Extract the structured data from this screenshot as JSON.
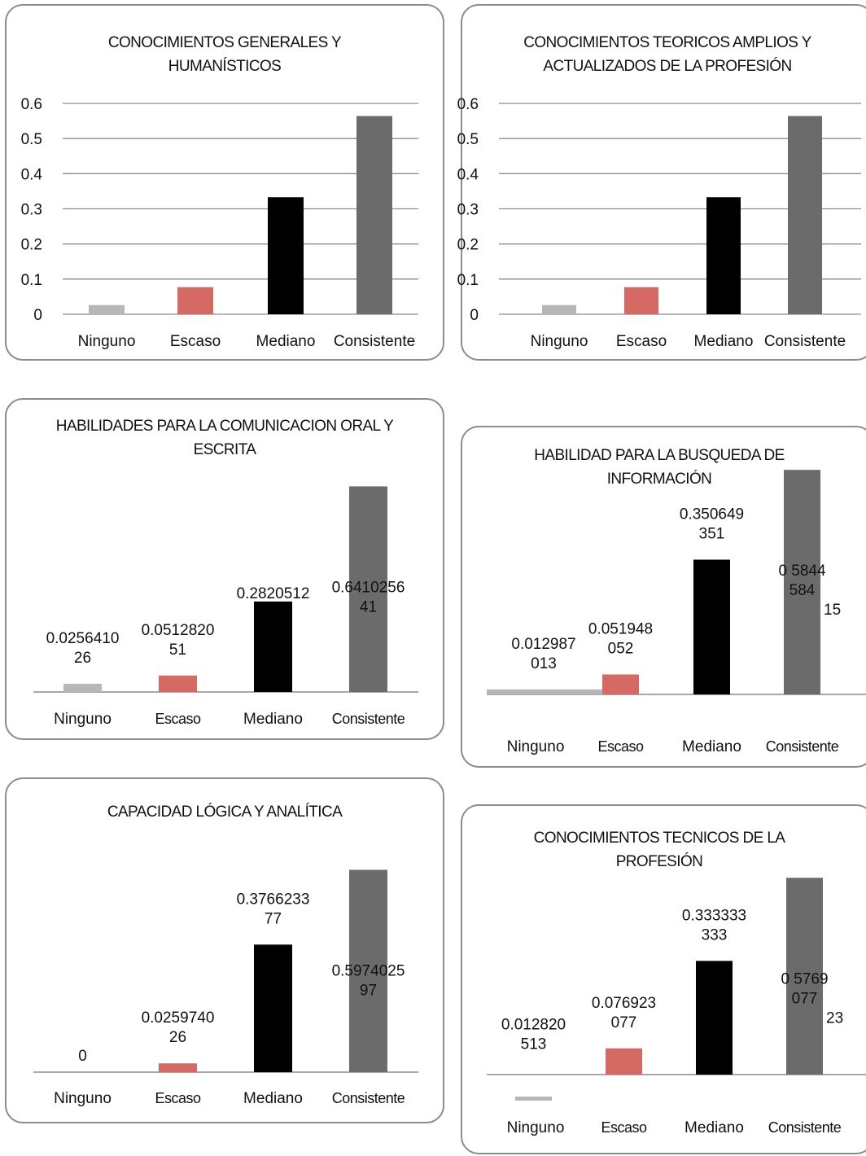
{
  "colors": {
    "ninguno": "#b7b7b7",
    "escaso": "#d46a63",
    "mediano": "#000000",
    "consistente": "#6b6b6b",
    "grid": "#8c8c8c",
    "border": "#8c8c8c"
  },
  "chart_data": [
    {
      "type": "bar",
      "title_lines": [
        "CONOCIMIENTOS GENERALES Y",
        "HUMANÍSTICOS"
      ],
      "categories": [
        "Ninguno",
        "Escaso",
        "Mediano",
        "Consistente"
      ],
      "values": [
        0.026,
        0.077,
        0.333,
        0.564
      ],
      "ylim": [
        0,
        0.6
      ],
      "yticks": [
        "0",
        "0.1",
        "0.2",
        "0.3",
        "0.4",
        "0.5",
        "0.6"
      ],
      "grid": true
    },
    {
      "type": "bar",
      "title_lines": [
        "CONOCIMIENTOS TEORICOS AMPLIOS Y",
        "ACTUALIZADOS DE LA  PROFESIÓN"
      ],
      "categories": [
        "Ninguno",
        "Escaso",
        "Mediano",
        "Consistente"
      ],
      "values": [
        0.026,
        0.077,
        0.333,
        0.564
      ],
      "ylim": [
        0,
        0.6
      ],
      "yticks": [
        "0",
        "0.1",
        "0.2",
        "0.3",
        "0.4",
        "0.5",
        "0.6"
      ],
      "grid": true
    },
    {
      "type": "bar",
      "title_lines": [
        "HABILIDADES PARA LA COMUNICACION ORAL Y",
        "ESCRITA"
      ],
      "categories": [
        "Ninguno",
        "Escaso",
        "Mediano",
        "Consistente"
      ],
      "values": [
        0.025641026,
        0.051282051,
        0.282051282,
        0.641025641
      ],
      "data_labels": [
        [
          "0.0256410",
          "26"
        ],
        [
          "0.0512820",
          "51"
        ],
        [
          "0.2820512"
        ],
        [
          "0.6410256",
          "41"
        ]
      ],
      "grid": false
    },
    {
      "type": "bar",
      "title_lines": [
        "HABILIDAD PARA LA BUSQUEDA DE",
        "INFORMACIÓN"
      ],
      "categories": [
        "Ninguno",
        "Escaso",
        "Mediano",
        "Consistente"
      ],
      "values": [
        0.012987013,
        0.051948052,
        0.350649351,
        0.584415584
      ],
      "data_labels": [
        [
          "0.012987",
          "013"
        ],
        [
          "0.051948",
          "052"
        ],
        [
          "0.350649",
          "351"
        ],
        [
          "0 5844",
          "584",
          "15"
        ]
      ],
      "grid": false
    },
    {
      "type": "bar",
      "title_lines": [
        "CAPACIDAD LÓGICA Y ANALÍTICA"
      ],
      "categories": [
        "Ninguno",
        "Escaso",
        "Mediano",
        "Consistente"
      ],
      "values": [
        0,
        0.025974026,
        0.376623377,
        0.597402597
      ],
      "data_labels": [
        [
          "0"
        ],
        [
          "0.0259740",
          "26"
        ],
        [
          "0.3766233",
          "77"
        ],
        [
          "0.5974025",
          "97"
        ]
      ],
      "grid": false
    },
    {
      "type": "bar",
      "title_lines": [
        "CONOCIMIENTOS  TECNICOS  DE LA",
        "PROFESIÓN"
      ],
      "categories": [
        "Ninguno",
        "Escaso",
        "Mediano",
        "Consistente"
      ],
      "values": [
        0.012820513,
        0.076923077,
        0.333333333,
        0.576923077
      ],
      "data_labels": [
        [
          "0.012820",
          "513"
        ],
        [
          "0.076923",
          "077"
        ],
        [
          "0.333333",
          "333"
        ],
        [
          "0 5769",
          "077",
          "23"
        ]
      ],
      "grid": false
    }
  ]
}
